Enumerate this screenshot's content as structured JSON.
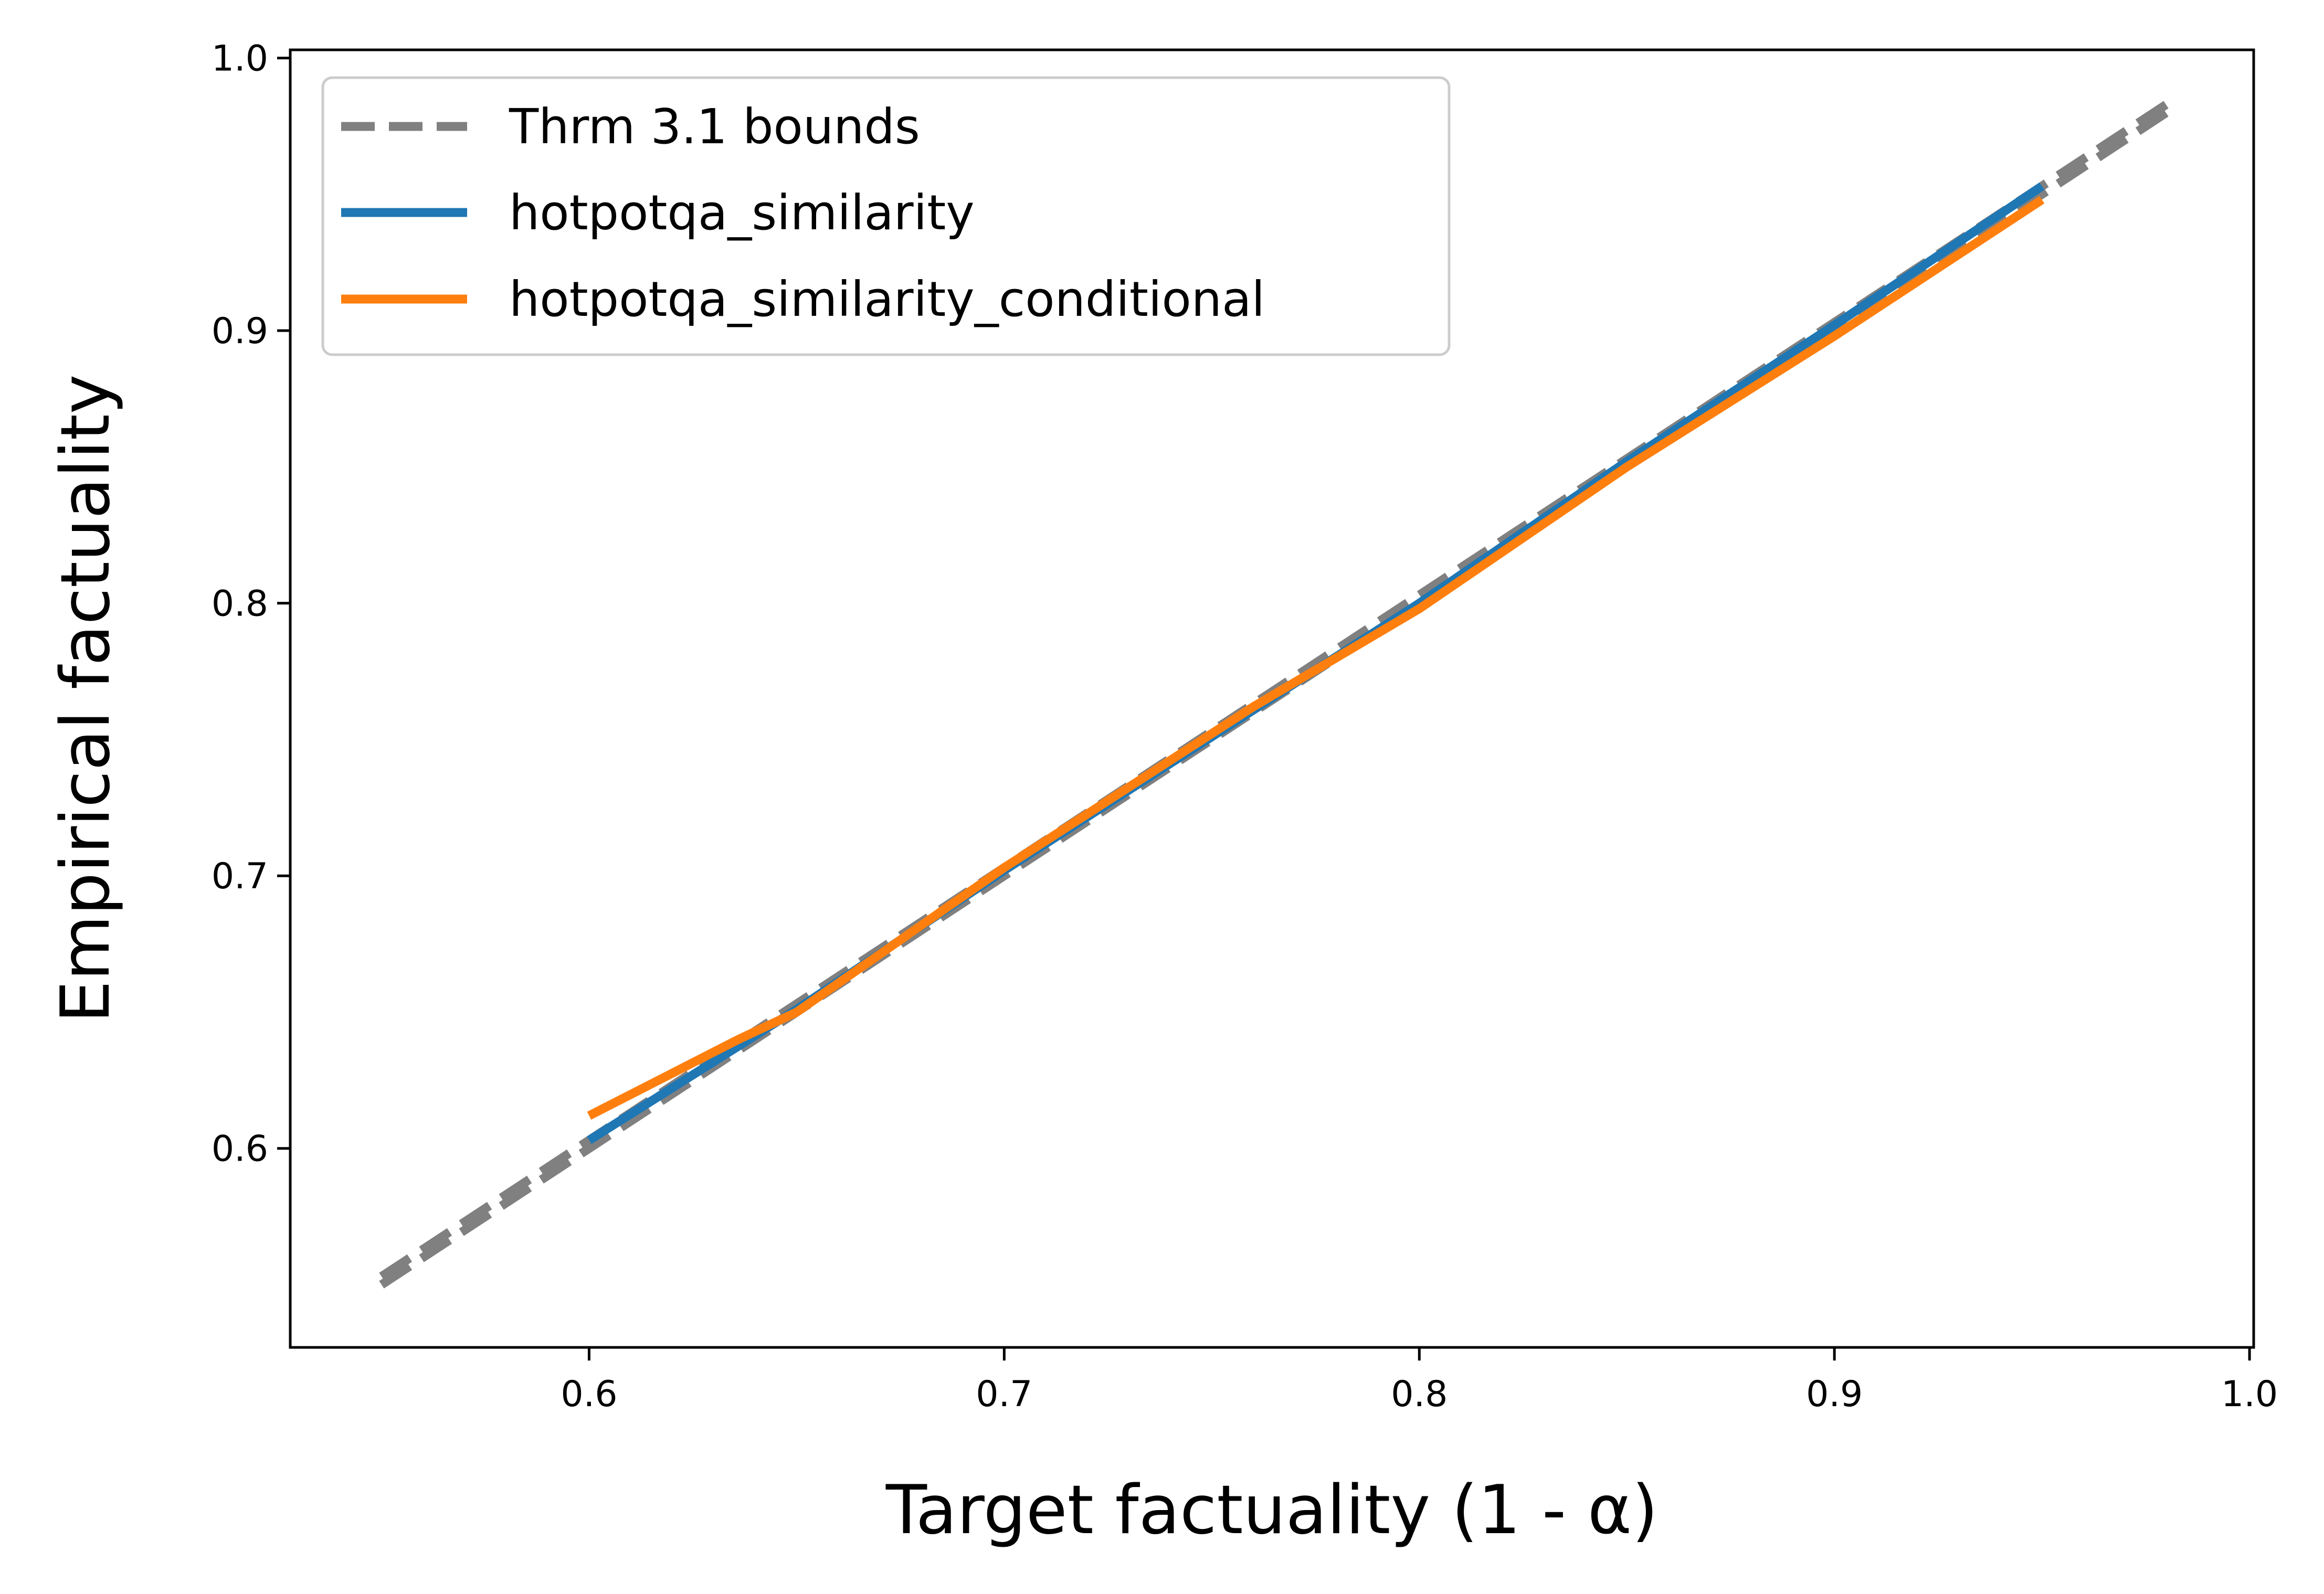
{
  "chart_data": {
    "type": "line",
    "xlabel": "Target factuality (1 - α)",
    "ylabel": "Empirical factuality",
    "xlim": [
      0.528,
      1.001
    ],
    "ylim": [
      0.527,
      1.003
    ],
    "xticks": [
      0.6,
      0.7,
      0.8,
      0.9,
      1.0
    ],
    "yticks": [
      0.6,
      0.7,
      0.8,
      0.9,
      1.0
    ],
    "xtick_labels": [
      "0.6",
      "0.7",
      "0.8",
      "0.9",
      "1.0"
    ],
    "ytick_labels": [
      "0.6",
      "0.7",
      "0.8",
      "0.9",
      "1.0"
    ],
    "grid": false,
    "legend_position": "top-left",
    "series": [
      {
        "name": "Thrm 3.1 bounds",
        "style": "dashed",
        "color": "#808080",
        "x": [
          0.55,
          0.98
        ],
        "y_lower": [
          0.55,
          0.98
        ],
        "y_upper": [
          0.553,
          0.983
        ]
      },
      {
        "name": "hotpotqa_similarity",
        "style": "solid",
        "color": "#1f77b4",
        "x": [
          0.6,
          0.65,
          0.7,
          0.75,
          0.8,
          0.85,
          0.9,
          0.95
        ],
        "y": [
          0.603,
          0.651,
          0.702,
          0.751,
          0.8,
          0.852,
          0.902,
          0.953
        ]
      },
      {
        "name": "hotpotqa_similarity_conditional",
        "style": "solid",
        "color": "#ff7f0e",
        "x": [
          0.6,
          0.636,
          0.65,
          0.7,
          0.76,
          0.8,
          0.85,
          0.9,
          0.95
        ],
        "y": [
          0.612,
          0.64,
          0.65,
          0.703,
          0.762,
          0.798,
          0.85,
          0.898,
          0.948
        ]
      }
    ]
  }
}
